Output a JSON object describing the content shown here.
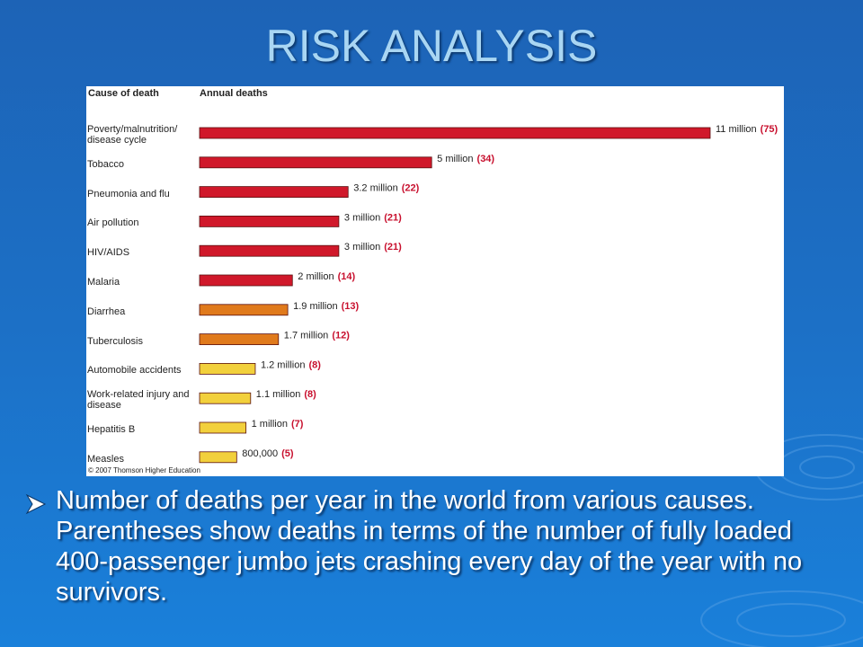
{
  "title": "RISK ANALYSIS",
  "chart_data": {
    "type": "bar",
    "orientation": "horizontal",
    "category_header": "Cause of death",
    "value_header": "Annual deaths",
    "categories": [
      "Poverty/malnutrition/ disease cycle",
      "Tobacco",
      "Pneumonia and flu",
      "Air pollution",
      "HIV/AIDS",
      "Malaria",
      "Diarrhea",
      "Tuberculosis",
      "Automobile accidents",
      "Work-related injury and disease",
      "Hepatitis B",
      "Measles"
    ],
    "values": [
      11000000,
      5000000,
      3200000,
      3000000,
      3000000,
      2000000,
      1900000,
      1700000,
      1200000,
      1100000,
      1000000,
      800000
    ],
    "value_labels": [
      "11 million",
      "5 million",
      "3.2 million",
      "3 million",
      "3 million",
      "2 million",
      "1.9 million",
      "1.7 million",
      "1.2 million",
      "1.1 million",
      "1 million",
      "800,000"
    ],
    "colors": [
      "#d0182a",
      "#d0182a",
      "#d0182a",
      "#d0182a",
      "#d0182a",
      "#d0182a",
      "#e07a1c",
      "#e07a1c",
      "#f2d03c",
      "#f2d03c",
      "#f2d03c",
      "#f2d03c"
    ],
    "jets": {
      "values": [
        75,
        34,
        22,
        21,
        21,
        14,
        13,
        12,
        8,
        8,
        7,
        5
      ],
      "value_labels": [
        "(75)",
        "(34)",
        "(22)",
        "(21)",
        "(21)",
        "(14)",
        "(13)",
        "(12)",
        "(8)",
        "(8)",
        "(7)",
        "(5)"
      ],
      "color": "#c8102e"
    },
    "credit": "© 2007 Thomson Higher Education"
  },
  "bullet": "Number of deaths per year in the world from various causes. Parentheses show deaths in terms of the number of fully loaded 400-passenger jumbo jets crashing every day of the year with no survivors."
}
